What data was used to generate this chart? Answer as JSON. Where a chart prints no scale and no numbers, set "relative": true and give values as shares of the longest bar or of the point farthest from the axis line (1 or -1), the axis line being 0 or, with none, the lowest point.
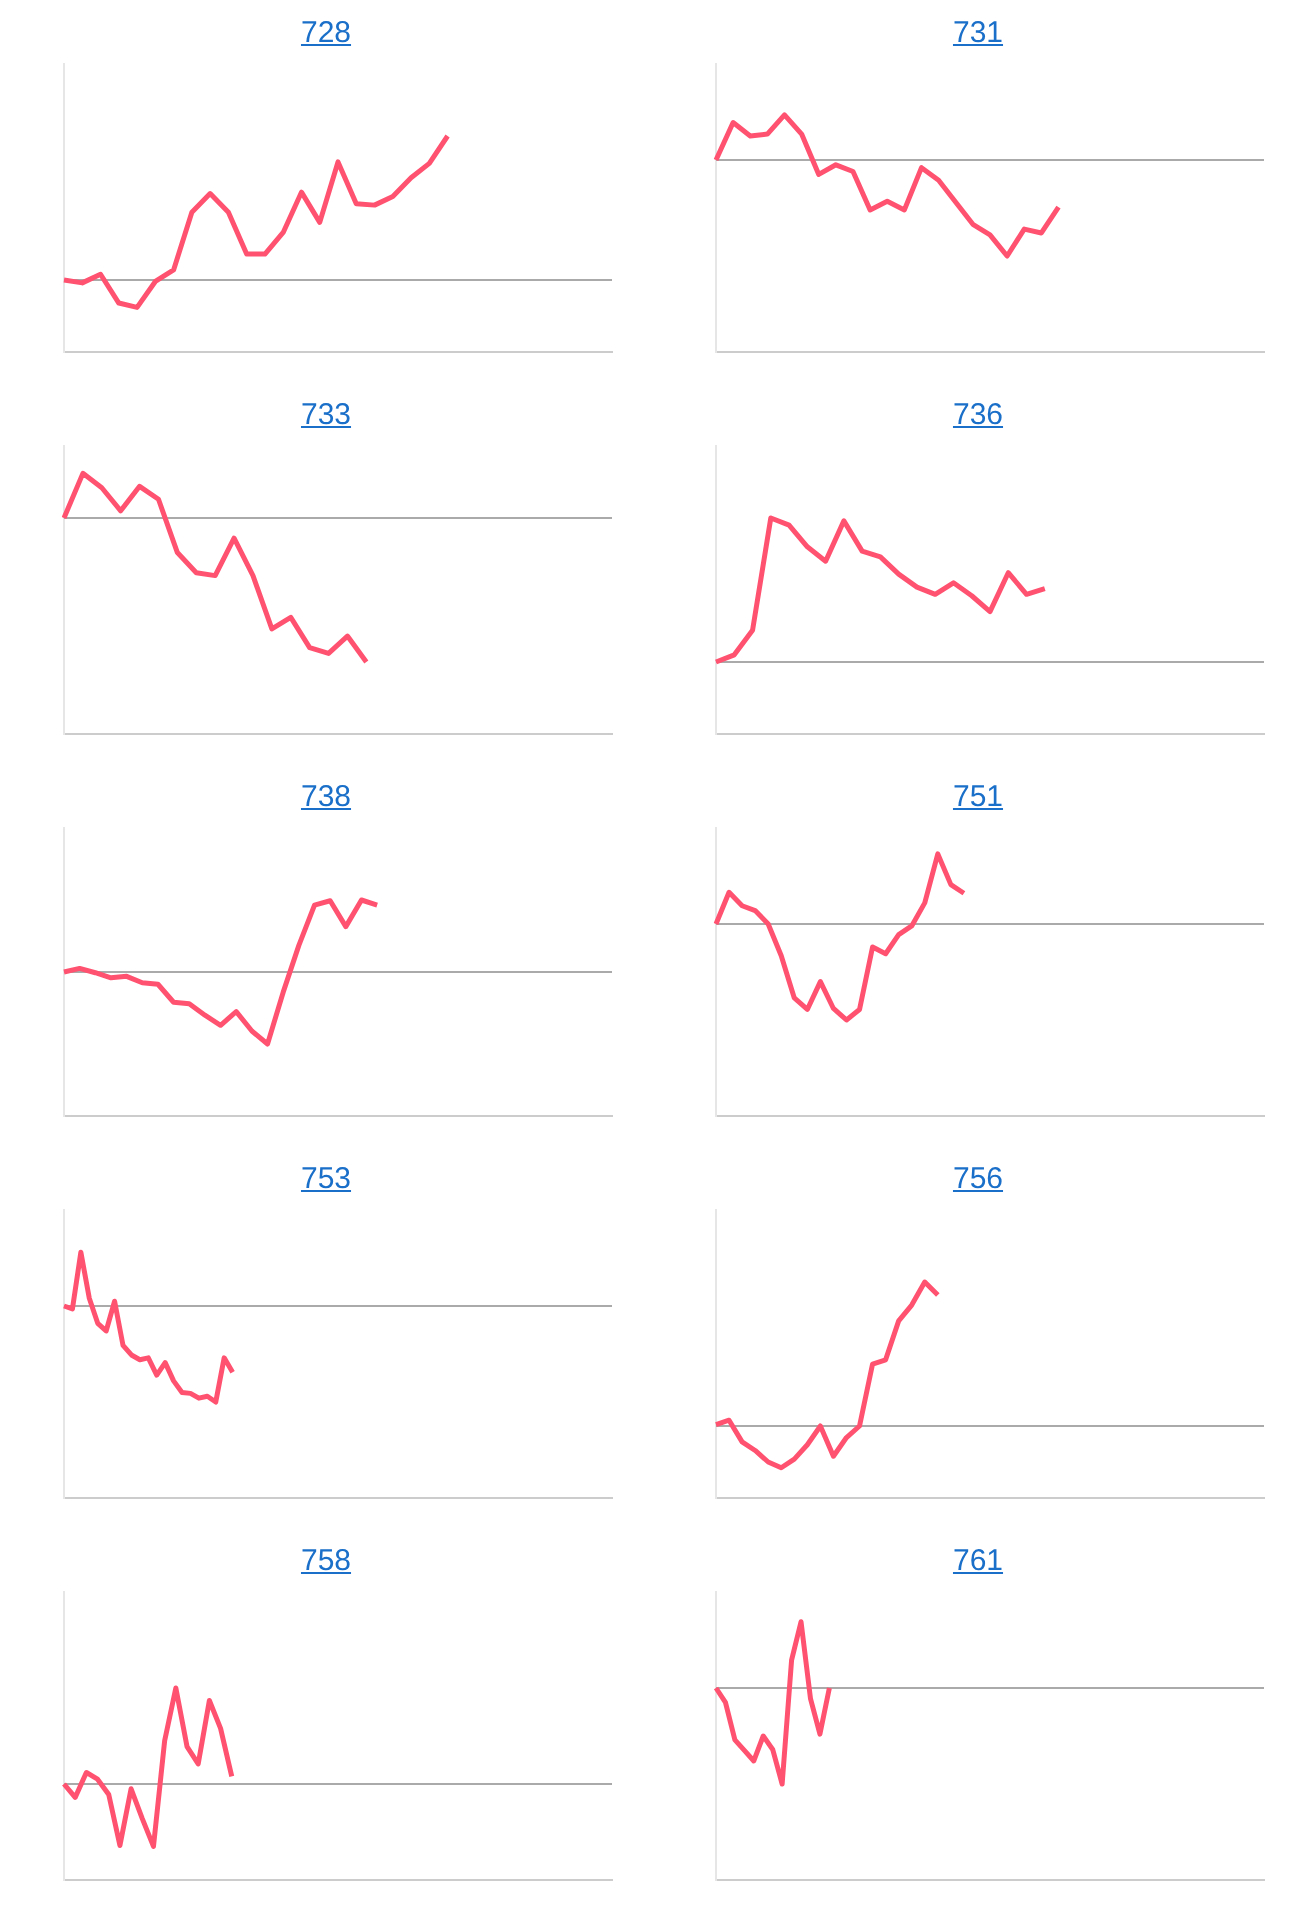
{
  "chart_data": [
    {
      "type": "line",
      "title": "728",
      "relative": true,
      "color": "#ff5270",
      "categories": [
        null,
        null,
        null,
        null,
        null,
        null,
        null,
        null,
        null,
        null,
        null,
        null,
        null,
        null,
        null,
        null,
        null,
        null,
        null,
        null,
        null,
        null,
        null,
        null,
        null,
        null,
        null,
        null,
        null,
        null,
        null
      ],
      "values": [
        0,
        -0.02,
        0.04,
        -0.16,
        -0.19,
        -0.01,
        0.07,
        0.47,
        0.6,
        0.47,
        0.18,
        0.18,
        0.33,
        0.61,
        0.4,
        0.82,
        0.53,
        0.52,
        0.58,
        0.71,
        0.81,
        1,
        null,
        null,
        null,
        null,
        null,
        null,
        null,
        null,
        null
      ]
    },
    {
      "type": "line",
      "title": "731",
      "relative": true,
      "color": "#ff5270",
      "categories": [
        null,
        null,
        null,
        null,
        null,
        null,
        null,
        null,
        null,
        null,
        null,
        null,
        null,
        null,
        null,
        null,
        null,
        null,
        null,
        null,
        null,
        null,
        null,
        null,
        null,
        null,
        null,
        null,
        null,
        null,
        null,
        null,
        null
      ],
      "values": [
        0,
        0.39,
        0.25,
        0.27,
        0.47,
        0.27,
        -0.15,
        -0.05,
        -0.12,
        -0.52,
        -0.43,
        -0.52,
        -0.08,
        -0.21,
        -0.44,
        -0.67,
        -0.78,
        -1,
        -0.72,
        -0.76,
        -0.49,
        null,
        null,
        null,
        null,
        null,
        null,
        null,
        null,
        null,
        null,
        null,
        null
      ]
    },
    {
      "type": "line",
      "title": "733",
      "relative": true,
      "color": "#ff5270",
      "categories": [
        null,
        null,
        null,
        null,
        null,
        null,
        null,
        null,
        null,
        null,
        null,
        null,
        null,
        null,
        null,
        null,
        null,
        null,
        null,
        null,
        null,
        null,
        null,
        null,
        null,
        null,
        null,
        null,
        null,
        null
      ],
      "values": [
        0,
        0.31,
        0.21,
        0.05,
        0.22,
        0.13,
        -0.24,
        -0.38,
        -0.4,
        -0.14,
        -0.4,
        -0.77,
        -0.69,
        -0.9,
        -0.94,
        -0.82,
        -1,
        null,
        null,
        null,
        null,
        null,
        null,
        null,
        null,
        null,
        null,
        null,
        null,
        null
      ]
    },
    {
      "type": "line",
      "title": "736",
      "relative": true,
      "color": "#ff5270",
      "categories": [
        null,
        null,
        null,
        null,
        null,
        null,
        null,
        null,
        null,
        null,
        null,
        null,
        null,
        null,
        null,
        null,
        null,
        null,
        null,
        null,
        null,
        null,
        null,
        null,
        null,
        null,
        null,
        null,
        null,
        null,
        null
      ],
      "values": [
        0,
        0.05,
        0.22,
        1,
        0.95,
        0.8,
        0.7,
        0.98,
        0.77,
        0.73,
        0.61,
        0.52,
        0.47,
        0.55,
        0.46,
        0.35,
        0.62,
        0.47,
        0.51,
        null,
        null,
        null,
        null,
        null,
        null,
        null,
        null,
        null,
        null,
        null,
        null
      ]
    },
    {
      "type": "line",
      "title": "738",
      "relative": true,
      "color": "#ff5270",
      "categories": [
        null,
        null,
        null,
        null,
        null,
        null,
        null,
        null,
        null,
        null,
        null,
        null,
        null,
        null,
        null,
        null,
        null,
        null,
        null,
        null,
        null,
        null,
        null,
        null,
        null,
        null,
        null,
        null,
        null,
        null,
        null,
        null,
        null,
        null,
        null,
        null
      ],
      "values": [
        0,
        0.05,
        -0.01,
        -0.08,
        -0.06,
        -0.15,
        -0.17,
        -0.42,
        -0.44,
        -0.6,
        -0.74,
        -0.55,
        -0.82,
        -1,
        -0.28,
        0.37,
        0.93,
        0.99,
        0.63,
        1,
        0.93,
        null,
        null,
        null,
        null,
        null,
        null,
        null,
        null,
        null,
        null,
        null,
        null,
        null,
        null,
        null
      ]
    },
    {
      "type": "line",
      "title": "751",
      "relative": true,
      "color": "#ff5270",
      "categories": [
        null,
        null,
        null,
        null,
        null,
        null,
        null,
        null,
        null,
        null,
        null,
        null,
        null,
        null,
        null,
        null,
        null,
        null,
        null,
        null,
        null,
        null,
        null,
        null,
        null,
        null,
        null,
        null,
        null,
        null,
        null,
        null,
        null,
        null,
        null,
        null,
        null,
        null,
        null,
        null,
        null,
        null,
        null
      ],
      "values": [
        0,
        0.33,
        0.19,
        0.14,
        0,
        -0.33,
        -0.77,
        -0.89,
        -0.6,
        -0.88,
        -1,
        -0.89,
        -0.24,
        -0.31,
        -0.11,
        -0.02,
        0.22,
        0.73,
        0.41,
        0.32,
        null,
        null,
        null,
        null,
        null,
        null,
        null,
        null,
        null,
        null,
        null,
        null,
        null,
        null,
        null,
        null,
        null,
        null,
        null,
        null,
        null,
        null,
        null
      ]
    },
    {
      "type": "line",
      "title": "753",
      "relative": true,
      "color": "#ff5270",
      "categories": [
        null,
        null,
        null,
        null,
        null,
        null,
        null,
        null,
        null,
        null,
        null,
        null,
        null,
        null,
        null,
        null,
        null,
        null,
        null,
        null,
        null,
        null,
        null,
        null,
        null,
        null,
        null,
        null,
        null,
        null,
        null,
        null,
        null,
        null,
        null,
        null,
        null,
        null,
        null,
        null,
        null,
        null,
        null,
        null,
        null,
        null,
        null,
        null,
        null,
        null,
        null,
        null,
        null,
        null,
        null,
        null,
        null,
        null,
        null,
        null,
        null,
        null,
        null,
        null,
        null,
        null
      ],
      "values": [
        0,
        -0.03,
        0.56,
        0.08,
        -0.18,
        -0.26,
        0.05,
        -0.41,
        -0.51,
        -0.56,
        -0.54,
        -0.72,
        -0.59,
        -0.78,
        -0.9,
        -0.91,
        -0.96,
        -0.94,
        -1,
        -0.54,
        -0.69,
        null,
        null,
        null,
        null,
        null,
        null,
        null,
        null,
        null,
        null,
        null,
        null,
        null,
        null,
        null,
        null,
        null,
        null,
        null,
        null,
        null,
        null,
        null,
        null,
        null,
        null,
        null,
        null,
        null,
        null,
        null,
        null,
        null,
        null,
        null,
        null,
        null,
        null,
        null,
        null,
        null,
        null,
        null,
        null,
        null
      ]
    },
    {
      "type": "line",
      "title": "756",
      "relative": true,
      "color": "#ff5270",
      "categories": [
        null,
        null,
        null,
        null,
        null,
        null,
        null,
        null,
        null,
        null,
        null,
        null,
        null,
        null,
        null,
        null,
        null,
        null,
        null,
        null,
        null,
        null,
        null,
        null,
        null,
        null,
        null,
        null,
        null,
        null,
        null,
        null,
        null,
        null,
        null,
        null,
        null,
        null,
        null,
        null,
        null,
        null,
        null
      ],
      "values": [
        0.01,
        0.04,
        -0.11,
        -0.17,
        -0.25,
        -0.29,
        -0.23,
        -0.13,
        0,
        -0.21,
        -0.08,
        0,
        0.43,
        0.46,
        0.73,
        0.84,
        1,
        0.91,
        null,
        null,
        null,
        null,
        null,
        null,
        null,
        null,
        null,
        null,
        null,
        null,
        null,
        null,
        null,
        null,
        null,
        null,
        null,
        null,
        null,
        null,
        null,
        null,
        null
      ]
    },
    {
      "type": "line",
      "title": "758",
      "relative": true,
      "color": "#ff5270",
      "categories": [
        null,
        null,
        null,
        null,
        null,
        null,
        null,
        null,
        null,
        null,
        null,
        null,
        null,
        null,
        null,
        null,
        null,
        null,
        null,
        null,
        null,
        null,
        null,
        null,
        null,
        null,
        null,
        null,
        null,
        null,
        null,
        null,
        null,
        null,
        null,
        null,
        null,
        null,
        null,
        null,
        null,
        null,
        null,
        null,
        null,
        null,
        null,
        null,
        null,
        null
      ],
      "values": [
        0,
        -0.14,
        0.12,
        0.05,
        -0.11,
        -0.64,
        -0.05,
        -0.36,
        -0.65,
        0.45,
        1,
        0.39,
        0.21,
        0.87,
        0.58,
        0.08,
        null,
        null,
        null,
        null,
        null,
        null,
        null,
        null,
        null,
        null,
        null,
        null,
        null,
        null,
        null,
        null,
        null,
        null,
        null,
        null,
        null,
        null,
        null,
        null,
        null,
        null,
        null,
        null,
        null,
        null,
        null,
        null,
        null,
        null
      ]
    },
    {
      "type": "line",
      "title": "761",
      "relative": true,
      "color": "#ff5270",
      "categories": [
        null,
        null,
        null,
        null,
        null,
        null,
        null,
        null,
        null,
        null,
        null,
        null,
        null,
        null,
        null,
        null,
        null,
        null,
        null,
        null,
        null,
        null,
        null,
        null,
        null,
        null,
        null,
        null,
        null,
        null,
        null,
        null,
        null,
        null,
        null,
        null,
        null,
        null,
        null,
        null,
        null,
        null,
        null,
        null,
        null,
        null,
        null,
        null,
        null,
        null,
        null,
        null,
        null,
        null,
        null,
        null,
        null,
        null,
        null
      ],
      "values": [
        0,
        -0.15,
        -0.54,
        -0.65,
        -0.76,
        -0.5,
        -0.64,
        -1,
        0.29,
        0.69,
        -0.11,
        -0.48,
        0,
        null,
        null,
        null,
        null,
        null,
        null,
        null,
        null,
        null,
        null,
        null,
        null,
        null,
        null,
        null,
        null,
        null,
        null,
        null,
        null,
        null,
        null,
        null,
        null,
        null,
        null,
        null,
        null,
        null,
        null,
        null,
        null,
        null,
        null,
        null,
        null,
        null,
        null,
        null,
        null,
        null,
        null,
        null,
        null,
        null,
        null
      ]
    }
  ]
}
